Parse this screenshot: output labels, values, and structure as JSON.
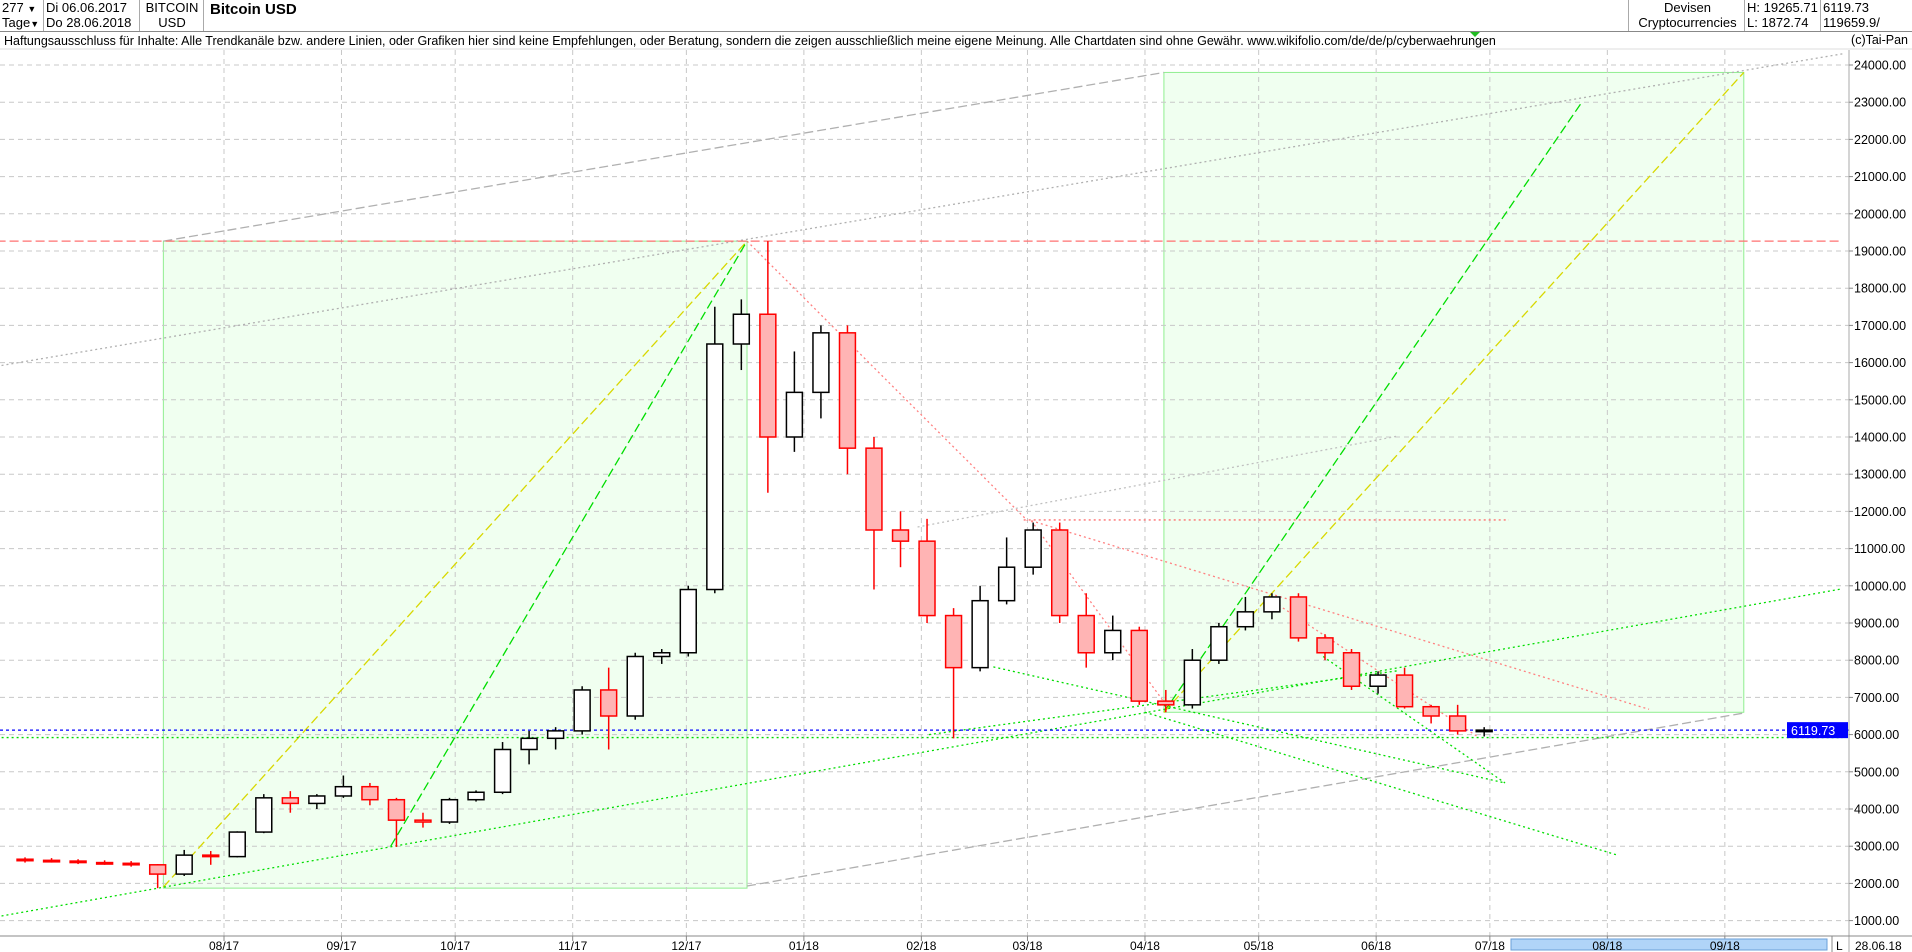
{
  "header": {
    "count": "277",
    "interval": "Tage",
    "date_from": "Di 06.06.2017",
    "date_to": "Do 28.06.2018",
    "symbol_line1": "BITCOIN",
    "symbol_line2": "USD",
    "title": "Bitcoin USD",
    "category_line1": "Devisen",
    "category_line2": "Cryptocurrencies",
    "high": "H: 19265.71",
    "low": "L: 1872.74",
    "last": "6119.73",
    "volume": "119659.9/"
  },
  "disclaimer": "Haftungsausschluss für Inhalte: Alle Trendkanäle bzw. andere Linien, oder Grafiken hier sind keine Empfehlungen, oder Beratung, sondern die zeigen ausschließlich meine eigene Meinung. Alle Chartdaten sind ohne Gewähr.  www.wikifolio.com/de/de/p/cyberwaehrungen",
  "copyright": "(c)Tai-Pan",
  "footer": {
    "scroll_mode": "L",
    "end_date": "28.06.18"
  },
  "colors": {
    "up_fill": "#ffffff",
    "up_stroke": "#000000",
    "down_fill": "#ffb4b4",
    "down_stroke": "#ff0000",
    "box_fill": "#f0fff0",
    "box_stroke": "#90ee90",
    "last_price": "#0000ff",
    "scrollbar": "#b0d4f8"
  },
  "chart_data": {
    "type": "candlestick",
    "title": "Bitcoin USD",
    "ylim": [
      500,
      24500
    ],
    "yticks": [
      1000,
      2000,
      3000,
      4000,
      5000,
      6000,
      7000,
      8000,
      9000,
      10000,
      11000,
      12000,
      13000,
      14000,
      15000,
      16000,
      17000,
      18000,
      19000,
      20000,
      21000,
      22000,
      23000,
      24000
    ],
    "ytick_labels": [
      "1000.00",
      "2000.00",
      "3000.00",
      "4000.00",
      "5000.00",
      "6000.00",
      "7000.00",
      "8000.00",
      "9000.00",
      "10000.00",
      "11000.00",
      "12000.00",
      "13000.00",
      "14000.00",
      "15000.00",
      "16000.00",
      "17000.00",
      "18000.00",
      "19000.00",
      "20000.00",
      "21000.00",
      "22000.00",
      "23000.00",
      "24000.00"
    ],
    "xticks": [
      {
        "date": "2017-08-01",
        "label": "08/17"
      },
      {
        "date": "2017-09-01",
        "label": "09/17"
      },
      {
        "date": "2017-10-01",
        "label": "10/17"
      },
      {
        "date": "2017-11-01",
        "label": "11/17"
      },
      {
        "date": "2017-12-01",
        "label": "12/17"
      },
      {
        "date": "2018-01-01",
        "label": "01/18"
      },
      {
        "date": "2018-02-01",
        "label": "02/18"
      },
      {
        "date": "2018-03-01",
        "label": "03/18"
      },
      {
        "date": "2018-04-01",
        "label": "04/18"
      },
      {
        "date": "2018-05-01",
        "label": "05/18"
      },
      {
        "date": "2018-06-01",
        "label": "06/18"
      },
      {
        "date": "2018-07-01",
        "label": "07/18"
      },
      {
        "date": "2018-08-01",
        "label": "08/18"
      },
      {
        "date": "2018-09-01",
        "label": "09/18"
      }
    ],
    "grid": true,
    "last_price": 6119.73,
    "last_price_label": "6119.73",
    "candle_period_days": 7,
    "candles": [
      [
        "2017-06-06",
        2650,
        2700,
        2560,
        2620
      ],
      [
        "2017-06-13",
        2620,
        2680,
        2560,
        2600
      ],
      [
        "2017-06-20",
        2600,
        2650,
        2520,
        2560
      ],
      [
        "2017-06-27",
        2560,
        2620,
        2500,
        2540
      ],
      [
        "2017-07-04",
        2540,
        2600,
        2450,
        2500
      ],
      [
        "2017-07-11",
        2500,
        2520,
        1872.74,
        2250
      ],
      [
        "2017-07-18",
        2250,
        2900,
        2200,
        2760
      ],
      [
        "2017-07-25",
        2760,
        2870,
        2500,
        2720
      ],
      [
        "2017-08-01",
        2720,
        3400,
        2700,
        3380
      ],
      [
        "2017-08-08",
        3380,
        4400,
        3350,
        4300
      ],
      [
        "2017-08-15",
        4300,
        4480,
        3900,
        4150
      ],
      [
        "2017-08-22",
        4150,
        4400,
        4000,
        4350
      ],
      [
        "2017-08-29",
        4350,
        4900,
        4300,
        4600
      ],
      [
        "2017-09-05",
        4600,
        4700,
        4100,
        4250
      ],
      [
        "2017-09-12",
        4250,
        4300,
        2980,
        3700
      ],
      [
        "2017-09-19",
        3700,
        3900,
        3500,
        3650
      ],
      [
        "2017-09-26",
        3650,
        4300,
        3600,
        4250
      ],
      [
        "2017-10-03",
        4250,
        4500,
        4200,
        4450
      ],
      [
        "2017-10-10",
        4450,
        5800,
        4400,
        5600
      ],
      [
        "2017-10-17",
        5600,
        6100,
        5200,
        5900
      ],
      [
        "2017-10-24",
        5900,
        6200,
        5600,
        6100
      ],
      [
        "2017-10-31",
        6100,
        7300,
        6000,
        7200
      ],
      [
        "2017-11-07",
        7200,
        7800,
        5600,
        6500
      ],
      [
        "2017-11-14",
        6500,
        8200,
        6400,
        8100
      ],
      [
        "2017-11-21",
        8100,
        8300,
        7900,
        8200
      ],
      [
        "2017-11-28",
        8200,
        10000,
        8100,
        9900
      ],
      [
        "2017-12-05",
        9900,
        17500,
        9800,
        16500
      ],
      [
        "2017-12-12",
        16500,
        17700,
        15800,
        17300
      ],
      [
        "2017-12-19",
        17300,
        19265.71,
        12500,
        14000
      ],
      [
        "2017-12-26",
        14000,
        16300,
        13600,
        15200
      ],
      [
        "2018-01-02",
        15200,
        17000,
        14500,
        16800
      ],
      [
        "2018-01-09",
        16800,
        17000,
        13000,
        13700
      ],
      [
        "2018-01-16",
        13700,
        14000,
        9900,
        11500
      ],
      [
        "2018-01-23",
        11500,
        12000,
        10500,
        11200
      ],
      [
        "2018-01-30",
        11200,
        11800,
        9000,
        9200
      ],
      [
        "2018-02-06",
        9200,
        9400,
        5900,
        7800
      ],
      [
        "2018-02-13",
        7800,
        10000,
        7700,
        9600
      ],
      [
        "2018-02-20",
        9600,
        11300,
        9500,
        10500
      ],
      [
        "2018-02-27",
        10500,
        11700,
        10300,
        11500
      ],
      [
        "2018-03-06",
        11500,
        11700,
        9000,
        9200
      ],
      [
        "2018-03-13",
        9200,
        9800,
        7800,
        8200
      ],
      [
        "2018-03-20",
        8200,
        9200,
        8000,
        8800
      ],
      [
        "2018-03-27",
        8800,
        8900,
        6800,
        6900
      ],
      [
        "2018-04-03",
        6900,
        7200,
        6600,
        6800
      ],
      [
        "2018-04-10",
        6800,
        8300,
        6700,
        8000
      ],
      [
        "2018-04-17",
        8000,
        9000,
        7900,
        8900
      ],
      [
        "2018-04-24",
        8900,
        9700,
        8800,
        9300
      ],
      [
        "2018-05-01",
        9300,
        9800,
        9100,
        9700
      ],
      [
        "2018-05-08",
        9700,
        9800,
        8500,
        8600
      ],
      [
        "2018-05-15",
        8600,
        8700,
        8000,
        8200
      ],
      [
        "2018-05-22",
        8200,
        8300,
        7200,
        7300
      ],
      [
        "2018-05-29",
        7300,
        7700,
        7100,
        7600
      ],
      [
        "2018-06-05",
        7600,
        7800,
        6700,
        6750
      ],
      [
        "2018-06-12",
        6750,
        6800,
        6300,
        6500
      ],
      [
        "2018-06-19",
        6500,
        6800,
        6000,
        6100
      ],
      [
        "2018-06-26",
        6100,
        6200,
        5950,
        6119.73
      ]
    ],
    "annotations": {
      "boxes": [
        {
          "from": [
            "2017-07-16",
            1872.74
          ],
          "to": [
            "2017-12-17",
            19265.71
          ]
        },
        {
          "from": [
            "2018-04-06",
            6600
          ],
          "to": [
            "2018-09-06",
            23800
          ]
        }
      ],
      "lines": [
        {
          "color": "#b0b0b0",
          "style": "dotted",
          "from": [
            "2017-06-02",
            15900
          ],
          "to": [
            "2018-10-02",
            24300
          ]
        },
        {
          "color": "#b0b0b0",
          "style": "dashed",
          "from": [
            "2017-07-16",
            19266
          ],
          "to": [
            "2018-04-06",
            23800
          ]
        },
        {
          "color": "#b0b0b0",
          "style": "dashed",
          "from": [
            "2017-12-17",
            1930
          ],
          "to": [
            "2018-09-06",
            6580
          ]
        },
        {
          "color": "#c0c0c0",
          "style": "dotted",
          "from": [
            "2018-01-31",
            11580
          ],
          "to": [
            "2018-06-07",
            14030
          ]
        },
        {
          "color": "#ff7070",
          "style": "dashed",
          "from": [
            "2017-06-02",
            19266
          ],
          "to": [
            "2018-10-02",
            19266
          ]
        },
        {
          "color": "#ff7070",
          "style": "dotted",
          "from": [
            "2018-02-28",
            11770
          ],
          "to": [
            "2018-07-06",
            11770
          ]
        },
        {
          "color": "#ff8080",
          "style": "dotted",
          "from": [
            "2017-12-17",
            19266
          ],
          "to": [
            "2018-03-01",
            11750
          ]
        },
        {
          "color": "#ff8080",
          "style": "dotted",
          "from": [
            "2018-03-02",
            11750
          ],
          "to": [
            "2018-08-12",
            6680
          ]
        },
        {
          "color": "#ff8080",
          "style": "dotted",
          "from": [
            "2018-03-02",
            11750
          ],
          "to": [
            "2018-04-07",
            6740
          ]
        },
        {
          "color": "#ff8080",
          "style": "dotted",
          "from": [
            "2018-05-03",
            9700
          ],
          "to": [
            "2018-06-28",
            5930
          ]
        },
        {
          "color": "#d8d800",
          "style": "dashed",
          "from": [
            "2017-07-16",
            1900
          ],
          "to": [
            "2017-12-17",
            19266
          ]
        },
        {
          "color": "#00dd00",
          "style": "dashed",
          "from": [
            "2017-09-14",
            3000
          ],
          "to": [
            "2017-12-17",
            19266
          ]
        },
        {
          "color": "#00dd00",
          "style": "dashed",
          "from": [
            "2018-04-06",
            6600
          ],
          "to": [
            "2018-07-25",
            22960
          ]
        },
        {
          "color": "#d8d800",
          "style": "dashed",
          "from": [
            "2018-04-06",
            6600
          ],
          "to": [
            "2018-09-06",
            23800
          ]
        },
        {
          "color": "#00dd00",
          "style": "dotted",
          "from": [
            "2017-06-02",
            1100
          ],
          "to": [
            "2018-10-02",
            9920
          ]
        },
        {
          "color": "#00dd00",
          "style": "dotted",
          "from": [
            "2018-02-03",
            6000
          ],
          "to": [
            "2018-06-07",
            7720
          ]
        },
        {
          "color": "#00dd00",
          "style": "dotted",
          "from": [
            "2018-02-20",
            7820
          ],
          "to": [
            "2018-07-05",
            4700
          ]
        },
        {
          "color": "#00dd00",
          "style": "dotted",
          "from": [
            "2018-04-01",
            6600
          ],
          "to": [
            "2018-08-04",
            2750
          ]
        },
        {
          "color": "#00dd00",
          "style": "dotted",
          "from": [
            "2018-05-18",
            8100
          ],
          "to": [
            "2018-07-05",
            4700
          ]
        },
        {
          "color": "#00dd00",
          "style": "dotted",
          "from": [
            "2017-06-02",
            5920
          ],
          "to": [
            "2018-10-02",
            5920
          ]
        }
      ]
    }
  }
}
